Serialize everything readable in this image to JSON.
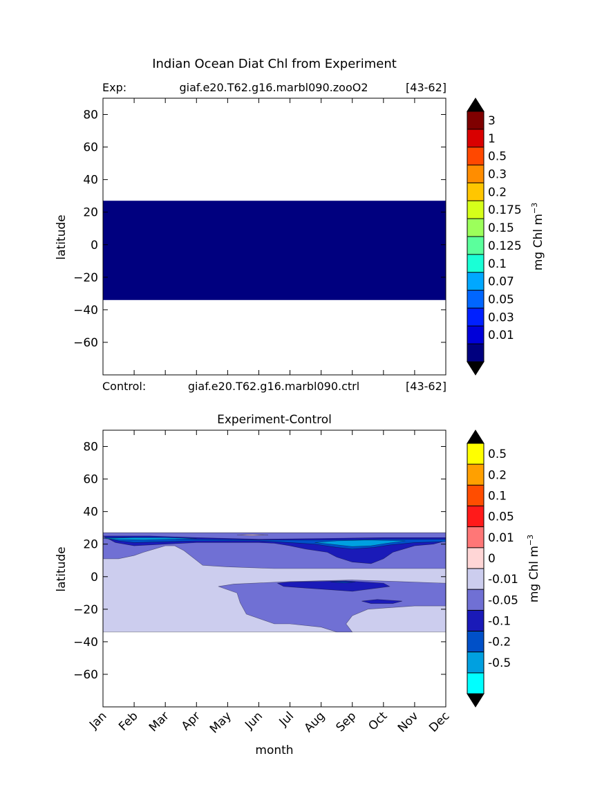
{
  "figure": {
    "title": "Indian Ocean Diat Chl from Experiment"
  },
  "chart_data": [
    {
      "type": "heatmap",
      "left_label": "Exp:",
      "center_label": "giaf.e20.T62.g16.marbl090.zooO2",
      "right_label": "[43-62]",
      "bottom_left_label": "Control:",
      "bottom_center_label": "giaf.e20.T62.g16.marbl090.ctrl",
      "bottom_right_label": "[43-62]",
      "ylabel": "latitude",
      "xlim": [
        0,
        11
      ],
      "ylim": [
        -80,
        90
      ],
      "yticks": [
        "80",
        "60",
        "40",
        "20",
        "0",
        "−20",
        "−40",
        "−60"
      ],
      "ytick_values": [
        80,
        60,
        40,
        20,
        0,
        -20,
        -40,
        -60
      ],
      "data_lat_range": [
        -34,
        27
      ],
      "fill_color": "#00007f",
      "fill_level": "below 0.01",
      "colorbar": {
        "label": "mg Chl m",
        "label_sup": "−3",
        "extend": "both",
        "levels": [
          "3",
          "1",
          "0.5",
          "0.3",
          "0.2",
          "0.175",
          "0.15",
          "0.125",
          "0.1",
          "0.07",
          "0.05",
          "0.03",
          "0.01"
        ],
        "colors": [
          "#7f0000",
          "#d90000",
          "#ff4800",
          "#ff8d00",
          "#ffc600",
          "#d6ff1a",
          "#9cff5b",
          "#5bff9c",
          "#1affd6",
          "#00a8ff",
          "#0066ff",
          "#0020ff",
          "#0000d9",
          "#00007f"
        ],
        "over_color": "#000000",
        "under_color": "#000000"
      }
    },
    {
      "type": "heatmap",
      "title": "Experiment-Control",
      "xlabel": "month",
      "ylabel": "latitude",
      "xticks": [
        "Jan",
        "Feb",
        "Mar",
        "Apr",
        "May",
        "Jun",
        "Jul",
        "Aug",
        "Sep",
        "Oct",
        "Nov",
        "Dec"
      ],
      "xlim": [
        0,
        11
      ],
      "ylim": [
        -80,
        90
      ],
      "yticks": [
        "80",
        "60",
        "40",
        "20",
        "0",
        "−20",
        "−40",
        "−60"
      ],
      "ytick_values": [
        80,
        60,
        40,
        20,
        0,
        -20,
        -40,
        -60
      ],
      "data_lat_range": [
        -34,
        27
      ],
      "colorbar": {
        "label": "mg Chl m",
        "label_sup": "−3",
        "extend": "both",
        "levels": [
          "0.5",
          "0.2",
          "0.1",
          "0.05",
          "0.01",
          "0",
          "-0.01",
          "-0.05",
          "-0.1",
          "-0.2",
          "-0.5"
        ],
        "colors": [
          "#ffff00",
          "#ffa000",
          "#ff4d00",
          "#ff1a1a",
          "#ff7777",
          "#ffd6d6",
          "#cccdee",
          "#7070d4",
          "#1a1ab8",
          "#0050c8",
          "#00a0e0",
          "#00ffff"
        ],
        "over_color": "#000000",
        "under_color": "#000000"
      },
      "regions": [
        {
          "level": "-0.01 to 0",
          "color": "#cccdee",
          "description_level": "background",
          "points": [
            [
              0,
              27
            ],
            [
              11,
              27
            ],
            [
              11,
              -34
            ],
            [
              0,
              -34
            ]
          ]
        },
        {
          "level": "-0.05 to -0.01",
          "color": "#7070d4",
          "points": [
            [
              0,
              27
            ],
            [
              11,
              27
            ],
            [
              11,
              5
            ],
            [
              7.5,
              5
            ],
            [
              6.5,
              5
            ],
            [
              5.5,
              5
            ],
            [
              4,
              6
            ],
            [
              3.2,
              7
            ],
            [
              3,
              10
            ],
            [
              2.6,
              16
            ],
            [
              2.3,
              19
            ],
            [
              2,
              19
            ],
            [
              1.3,
              15
            ],
            [
              1,
              13
            ],
            [
              0.5,
              11
            ],
            [
              0,
              11
            ]
          ]
        },
        {
          "level": "-0.05 to -0.01",
          "color": "#7070d4",
          "points": [
            [
              3.7,
              -6
            ],
            [
              4.2,
              -4.5
            ],
            [
              6,
              -3
            ],
            [
              8,
              -2
            ],
            [
              9.5,
              -3
            ],
            [
              11,
              -4
            ],
            [
              11,
              -18
            ],
            [
              10,
              -18
            ],
            [
              8.5,
              -20
            ],
            [
              8,
              -24
            ],
            [
              7.8,
              -29
            ],
            [
              8,
              -34
            ],
            [
              7.5,
              -34
            ],
            [
              7,
              -31
            ],
            [
              6,
              -29
            ],
            [
              5.5,
              -29
            ],
            [
              4.6,
              -23
            ],
            [
              4.4,
              -16
            ],
            [
              4.3,
              -10
            ]
          ]
        },
        {
          "level": "-0.1 to -0.05",
          "color": "#1a1ab8",
          "points": [
            [
              0,
              25
            ],
            [
              0.4,
              21
            ],
            [
              1,
              19
            ],
            [
              2,
              20
            ],
            [
              3,
              21
            ],
            [
              5,
              21
            ],
            [
              5.5,
              20.5
            ],
            [
              6,
              19
            ],
            [
              6.5,
              17
            ],
            [
              7.2,
              15
            ],
            [
              7.5,
              12
            ],
            [
              8,
              9
            ],
            [
              8.6,
              8
            ],
            [
              9,
              11
            ],
            [
              9.3,
              15
            ],
            [
              10,
              19
            ],
            [
              10.6,
              20
            ],
            [
              11,
              22
            ],
            [
              11,
              24
            ],
            [
              9,
              24
            ],
            [
              7,
              23.5
            ],
            [
              5,
              23
            ],
            [
              3,
              24
            ],
            [
              1.5,
              25
            ]
          ]
        },
        {
          "level": "-0.1 to -0.05",
          "color": "#1a1ab8",
          "points": [
            [
              5.6,
              -4
            ],
            [
              6,
              -3.3
            ],
            [
              7.8,
              -2.6
            ],
            [
              9,
              -4
            ],
            [
              9.2,
              -6
            ],
            [
              8,
              -9
            ],
            [
              6.5,
              -7
            ],
            [
              5.8,
              -6
            ]
          ]
        },
        {
          "level": "-0.1 to -0.05",
          "color": "#1a1ab8",
          "points": [
            [
              8.3,
              -15
            ],
            [
              8.8,
              -14
            ],
            [
              9.6,
              -15
            ],
            [
              9.3,
              -16.5
            ],
            [
              8.6,
              -16.5
            ]
          ]
        },
        {
          "level": "-0.2 to -0.1",
          "color": "#0050c8",
          "points": [
            [
              0,
              24
            ],
            [
              0.5,
              22
            ],
            [
              1,
              21
            ],
            [
              2,
              21.5
            ],
            [
              3,
              22
            ],
            [
              5,
              22
            ],
            [
              6,
              21
            ],
            [
              6.8,
              20
            ],
            [
              7.5,
              18
            ],
            [
              8,
              17
            ],
            [
              8.7,
              18
            ],
            [
              9.2,
              19.5
            ],
            [
              10,
              21
            ],
            [
              11,
              21.5
            ],
            [
              11,
              23
            ],
            [
              9,
              23
            ],
            [
              7,
              22.5
            ],
            [
              5,
              22.5
            ],
            [
              3,
              23
            ],
            [
              1.5,
              24
            ]
          ]
        },
        {
          "level": "-0.2 to -0.1",
          "color": "#0050c8",
          "points": [
            [
              7.3,
              -3.3
            ],
            [
              7.6,
              -3
            ],
            [
              8.1,
              -3.3
            ],
            [
              7.8,
              -3.8
            ]
          ]
        },
        {
          "level": "-0.5 to -0.2",
          "color": "#00a0e0",
          "points": [
            [
              0,
              23.5
            ],
            [
              0.5,
              22.8
            ],
            [
              1.3,
              22.6
            ],
            [
              2.2,
              23
            ],
            [
              3,
              23.5
            ],
            [
              2,
              24
            ],
            [
              1,
              24
            ]
          ]
        },
        {
          "level": "-0.5 to -0.2",
          "color": "#00a0e0",
          "points": [
            [
              6.8,
              21
            ],
            [
              7.3,
              20
            ],
            [
              8,
              18.5
            ],
            [
              8.6,
              19
            ],
            [
              9.1,
              20.5
            ],
            [
              9.7,
              22
            ],
            [
              8.5,
              22.5
            ],
            [
              7.5,
              22
            ]
          ]
        },
        {
          "level": "0 to 0.01",
          "color": "#ffd6d6",
          "points": [
            [
              4.3,
              25.6
            ],
            [
              4.7,
              25.9
            ],
            [
              5.3,
              25.7
            ],
            [
              4.8,
              25.3
            ]
          ]
        }
      ]
    }
  ]
}
